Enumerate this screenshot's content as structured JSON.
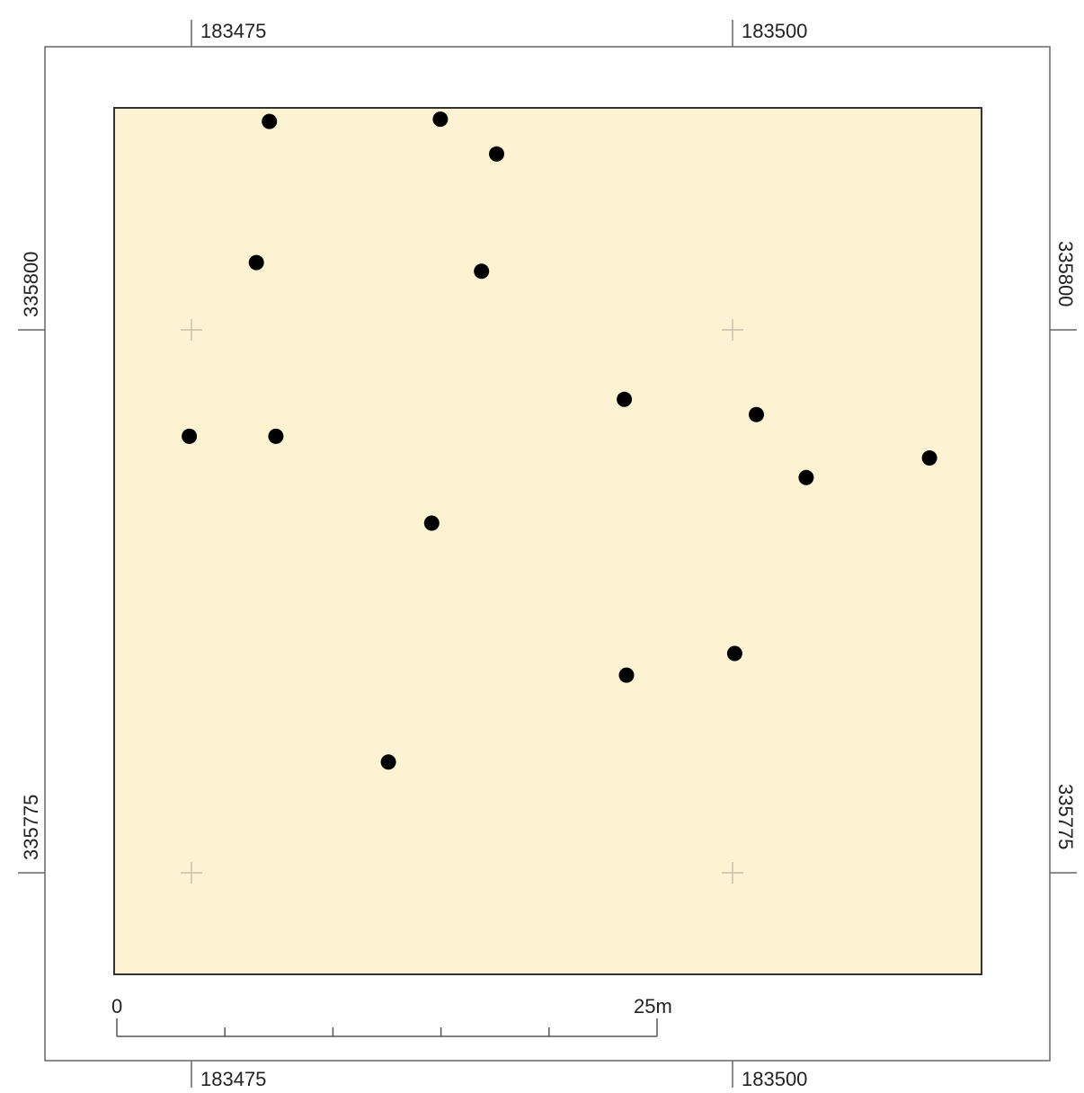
{
  "map": {
    "colors": {
      "plot_fill": "#fdf3d3",
      "plot_border": "#333333",
      "frame": "#666666",
      "points": "#000000",
      "grid_cross": "#c8c0a8"
    },
    "grid": {
      "easting_labels": [
        "183475",
        "183500"
      ],
      "northing_labels": [
        "335800",
        "335775"
      ]
    },
    "scale_bar": {
      "start_label": "0",
      "end_label": "25m",
      "divisions": 5
    },
    "points": [
      {
        "e": 183478.6,
        "n": 335809.6
      },
      {
        "e": 183486.5,
        "n": 335809.7
      },
      {
        "e": 183489.1,
        "n": 335808.1
      },
      {
        "e": 183478.0,
        "n": 335803.1
      },
      {
        "e": 183488.4,
        "n": 335802.7
      },
      {
        "e": 183474.9,
        "n": 335795.1
      },
      {
        "e": 183478.9,
        "n": 335795.1
      },
      {
        "e": 183495.0,
        "n": 335796.8
      },
      {
        "e": 183501.1,
        "n": 335796.1
      },
      {
        "e": 183503.4,
        "n": 335793.2
      },
      {
        "e": 183509.1,
        "n": 335794.1
      },
      {
        "e": 183486.1,
        "n": 335791.1
      },
      {
        "e": 183500.1,
        "n": 335785.1
      },
      {
        "e": 183495.1,
        "n": 335784.1
      },
      {
        "e": 183484.1,
        "n": 335780.1
      }
    ]
  }
}
